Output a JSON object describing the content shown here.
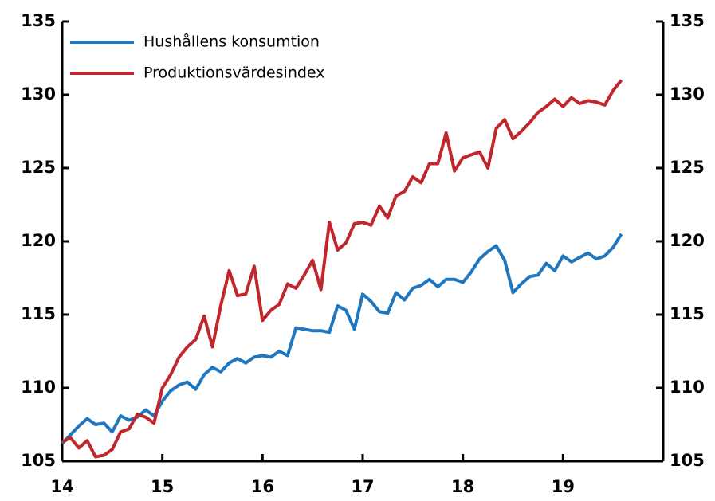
{
  "chart_data": {
    "type": "line",
    "x": [
      14,
      14.083,
      14.167,
      14.25,
      14.333,
      14.417,
      14.5,
      14.583,
      14.667,
      14.75,
      14.833,
      14.917,
      15,
      15.083,
      15.167,
      15.25,
      15.333,
      15.417,
      15.5,
      15.583,
      15.667,
      15.75,
      15.833,
      15.917,
      16,
      16.083,
      16.167,
      16.25,
      16.333,
      16.417,
      16.5,
      16.583,
      16.667,
      16.75,
      16.833,
      16.917,
      17,
      17.083,
      17.167,
      17.25,
      17.333,
      17.417,
      17.5,
      17.583,
      17.667,
      17.75,
      17.833,
      17.917,
      18,
      18.083,
      18.167,
      18.25,
      18.333,
      18.417,
      18.5,
      18.583,
      18.667,
      18.75,
      18.833,
      18.917,
      19,
      19.083,
      19.167,
      19.25,
      19.333,
      19.417,
      19.5,
      19.583
    ],
    "series": [
      {
        "name": "Hushållens konsumtion",
        "color": "#1f77c0",
        "values": [
          106.2,
          106.8,
          107.4,
          107.9,
          107.5,
          107.6,
          107.0,
          108.1,
          107.8,
          108.0,
          108.5,
          108.1,
          109.1,
          109.8,
          110.2,
          110.4,
          109.9,
          110.9,
          111.4,
          111.1,
          111.7,
          112.0,
          111.7,
          112.1,
          112.2,
          112.1,
          112.5,
          112.2,
          114.1,
          114.0,
          113.9,
          113.9,
          113.8,
          115.6,
          115.3,
          114.0,
          116.4,
          115.9,
          115.2,
          115.1,
          116.5,
          116.0,
          116.8,
          117.0,
          117.4,
          116.9,
          117.4,
          117.4,
          117.2,
          117.9,
          118.8,
          119.3,
          119.7,
          118.7,
          116.5,
          117.1,
          117.6,
          117.7,
          118.5,
          118.0,
          119.0,
          118.6,
          118.9,
          119.2,
          118.8,
          119.0,
          119.6,
          120.5
        ]
      },
      {
        "name": "Produktionsvärdesindex",
        "color": "#c0272d",
        "values": [
          106.3,
          106.6,
          105.9,
          106.4,
          105.3,
          105.4,
          105.8,
          107.0,
          107.2,
          108.2,
          108.0,
          107.6,
          110.0,
          110.9,
          112.1,
          112.8,
          113.3,
          114.9,
          112.8,
          115.6,
          118.0,
          116.3,
          116.4,
          118.3,
          114.6,
          115.3,
          115.7,
          117.1,
          116.8,
          117.7,
          118.7,
          116.7,
          121.3,
          119.4,
          119.9,
          121.2,
          121.3,
          121.1,
          122.4,
          121.6,
          123.1,
          123.4,
          124.4,
          124.0,
          125.3,
          125.3,
          127.4,
          124.8,
          125.7,
          125.9,
          126.1,
          125.0,
          127.7,
          128.3,
          127.0,
          127.5,
          128.1,
          128.8,
          129.2,
          129.7,
          129.2,
          129.8,
          129.4,
          129.6,
          129.5,
          129.3,
          130.3,
          131.0
        ]
      }
    ],
    "xlim": [
      14,
      20
    ],
    "xticks": [
      14,
      15,
      16,
      17,
      18,
      19
    ],
    "ylim": [
      105,
      135
    ],
    "yticks": [
      105,
      110,
      115,
      120,
      125,
      130,
      135
    ],
    "y2lim": [
      105,
      135
    ],
    "y2ticks": [
      105,
      110,
      115,
      120,
      125,
      130,
      135
    ],
    "grid": false,
    "legend": "upper left"
  }
}
